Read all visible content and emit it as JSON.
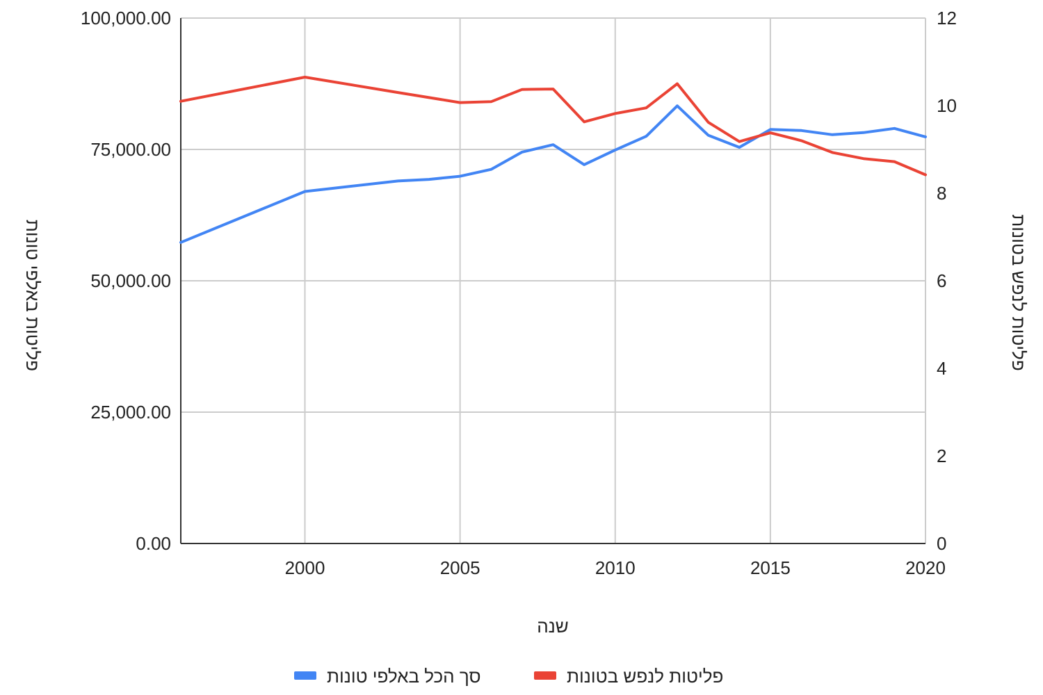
{
  "chart_data": {
    "type": "line",
    "xlabel": "שנה",
    "ylabel_left": "פליטות באלפי טונות",
    "ylabel_right": "פליטות לנפש בטונות",
    "xlim": [
      1996,
      2020
    ],
    "x_ticks": [
      "2000",
      "2005",
      "2010",
      "2015",
      "2020"
    ],
    "ylim_left": [
      0,
      100000
    ],
    "y_ticks_left": [
      "0.00",
      "25,000.00",
      "50,000.00",
      "75,000.00",
      "100,000.00"
    ],
    "ylim_right": [
      0,
      12
    ],
    "y_ticks_right": [
      "0",
      "2",
      "4",
      "6",
      "8",
      "10",
      "12"
    ],
    "grid": true,
    "legend_position": "bottom",
    "series": [
      {
        "name": "סך הכל באלפי טונות",
        "axis": "left",
        "color": "#4285F4",
        "x": [
          1996,
          2000,
          2003,
          2004,
          2005,
          2006,
          2007,
          2008,
          2009,
          2010,
          2011,
          2012,
          2013,
          2014,
          2015,
          2016,
          2017,
          2018,
          2019,
          2020
        ],
        "values": [
          57300,
          67000,
          69000,
          69300,
          69900,
          71200,
          74500,
          75900,
          72100,
          74900,
          77500,
          83300,
          77700,
          75400,
          78800,
          78600,
          77800,
          78200,
          79000,
          77400
        ]
      },
      {
        "name": "פליטות לנפש בטונות",
        "axis": "right",
        "color": "#EA4335",
        "x": [
          1996,
          2000,
          2003,
          2005,
          2006,
          2007,
          2008,
          2009,
          2010,
          2011,
          2012,
          2013,
          2014,
          2015,
          2016,
          2017,
          2018,
          2019,
          2020
        ],
        "values": [
          10.1,
          10.65,
          10.3,
          10.07,
          10.09,
          10.37,
          10.38,
          9.63,
          9.82,
          9.95,
          10.5,
          9.62,
          9.18,
          9.38,
          9.2,
          8.93,
          8.79,
          8.72,
          8.42
        ]
      }
    ]
  }
}
